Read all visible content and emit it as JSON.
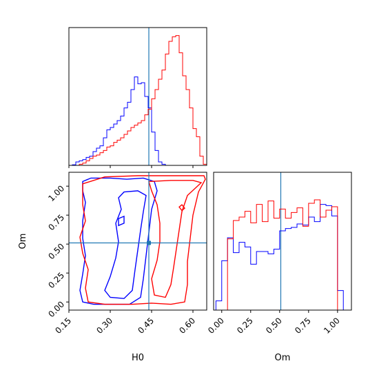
{
  "chart_data": {
    "type": "corner",
    "parameters": [
      "H0",
      "Om"
    ],
    "truth": {
      "H0": 0.44,
      "Om": 0.51,
      "color": "#1f77b4"
    },
    "series": [
      {
        "color": "#0000ff"
      },
      {
        "color": "#ff0000"
      }
    ],
    "axes": {
      "H0": {
        "xlim": [
          0.15,
          0.65
        ],
        "ticks": [
          0.15,
          0.3,
          0.45,
          0.6
        ],
        "tick_labels": [
          "0.15",
          "0.30",
          "0.45",
          "0.60"
        ]
      },
      "Om": {
        "xlim": [
          -0.07,
          1.12
        ],
        "ticks": [
          0.0,
          0.25,
          0.5,
          0.75,
          1.0
        ],
        "tick_labels": [
          "0.00",
          "0.25",
          "0.50",
          "0.75",
          "1.00"
        ]
      }
    },
    "hist_H0": {
      "bin_edges": [
        0.15,
        0.1625,
        0.175,
        0.1875,
        0.2,
        0.2125,
        0.225,
        0.2375,
        0.25,
        0.2625,
        0.275,
        0.2875,
        0.3,
        0.3125,
        0.325,
        0.3375,
        0.35,
        0.3625,
        0.375,
        0.3875,
        0.4,
        0.4125,
        0.425,
        0.4375,
        0.45,
        0.4625,
        0.475,
        0.4875,
        0.5,
        0.5125,
        0.525,
        0.5375,
        0.55,
        0.5625,
        0.575,
        0.5875,
        0.6,
        0.6125,
        0.625,
        0.6375,
        0.65
      ],
      "blue": [
        0,
        0.5,
        3,
        4,
        5,
        7,
        8,
        12,
        15,
        17,
        24,
        31,
        33,
        36,
        39,
        43,
        50,
        55,
        66,
        77,
        71,
        72,
        60,
        50,
        29,
        13,
        3,
        1,
        0,
        0,
        0,
        0,
        0,
        0,
        0,
        0,
        0,
        0,
        0,
        0
      ],
      "red": [
        0,
        0,
        0,
        1,
        2,
        4,
        6,
        8,
        9,
        11,
        13,
        16,
        17,
        20,
        22,
        24,
        27,
        30,
        33,
        35,
        37,
        39,
        44,
        49,
        58,
        66,
        75,
        83,
        97,
        108,
        112,
        113,
        98,
        78,
        66,
        50,
        32,
        25,
        8,
        1
      ]
    },
    "hist_Om": {
      "bin_edges": [
        -0.05,
        0.0,
        0.05,
        0.1,
        0.15,
        0.2,
        0.25,
        0.3,
        0.35,
        0.4,
        0.45,
        0.5,
        0.55,
        0.6,
        0.65,
        0.7,
        0.75,
        0.8,
        0.85,
        0.9,
        0.95,
        1.0,
        1.05,
        1.1
      ],
      "blue": [
        8,
        43,
        63,
        50,
        59,
        55,
        40,
        51,
        51,
        49,
        53,
        69,
        71,
        72,
        75,
        74,
        81,
        77,
        92,
        91,
        82,
        17,
        0
      ],
      "red": [
        0,
        0,
        62,
        78,
        81,
        86,
        76,
        92,
        77,
        95,
        80,
        88,
        80,
        85,
        89,
        73,
        93,
        96,
        81,
        87,
        90,
        0,
        0
      ]
    },
    "ylim_H0_hist": [
      0,
      120
    ],
    "ylim_Om_hist": [
      0,
      120
    ],
    "scatter_ylim": [
      -0.07,
      1.12
    ],
    "contours_2d": {
      "blue_outer": [
        [
          0.2,
          1.04
        ],
        [
          0.23,
          1.07
        ],
        [
          0.3,
          1.07
        ],
        [
          0.36,
          1.06
        ],
        [
          0.42,
          1.07
        ],
        [
          0.46,
          1.04
        ],
        [
          0.47,
          0.96
        ],
        [
          0.45,
          0.8
        ],
        [
          0.44,
          0.6
        ],
        [
          0.43,
          0.4
        ],
        [
          0.42,
          0.2
        ],
        [
          0.41,
          0.04
        ],
        [
          0.37,
          -0.02
        ],
        [
          0.3,
          -0.02
        ],
        [
          0.24,
          -0.02
        ],
        [
          0.2,
          0.0
        ],
        [
          0.19,
          0.1
        ],
        [
          0.2,
          0.24
        ],
        [
          0.21,
          0.4
        ],
        [
          0.2,
          0.55
        ],
        [
          0.2,
          0.7
        ],
        [
          0.21,
          0.86
        ],
        [
          0.2,
          0.96
        ]
      ],
      "blue_inner": [
        [
          0.35,
          0.95
        ],
        [
          0.4,
          0.96
        ],
        [
          0.43,
          0.92
        ],
        [
          0.42,
          0.78
        ],
        [
          0.41,
          0.62
        ],
        [
          0.4,
          0.45
        ],
        [
          0.39,
          0.28
        ],
        [
          0.38,
          0.1
        ],
        [
          0.35,
          0.03
        ],
        [
          0.3,
          0.04
        ],
        [
          0.28,
          0.1
        ],
        [
          0.3,
          0.22
        ],
        [
          0.32,
          0.38
        ],
        [
          0.33,
          0.52
        ],
        [
          0.32,
          0.68
        ],
        [
          0.34,
          0.8
        ],
        [
          0.33,
          0.9
        ]
      ],
      "red_outer": [
        [
          0.2,
          1.02
        ],
        [
          0.28,
          1.08
        ],
        [
          0.4,
          1.09
        ],
        [
          0.52,
          1.09
        ],
        [
          0.64,
          1.09
        ],
        [
          0.645,
          1.06
        ],
        [
          0.62,
          0.95
        ],
        [
          0.6,
          0.75
        ],
        [
          0.59,
          0.55
        ],
        [
          0.58,
          0.35
        ],
        [
          0.58,
          0.15
        ],
        [
          0.57,
          0.0
        ],
        [
          0.52,
          -0.02
        ],
        [
          0.45,
          -0.01
        ],
        [
          0.38,
          -0.02
        ],
        [
          0.28,
          -0.02
        ],
        [
          0.22,
          0.0
        ],
        [
          0.21,
          0.12
        ],
        [
          0.22,
          0.28
        ],
        [
          0.2,
          0.42
        ],
        [
          0.19,
          0.56
        ],
        [
          0.21,
          0.7
        ],
        [
          0.2,
          0.84
        ]
      ],
      "red_inner": [
        [
          0.44,
          1.04
        ],
        [
          0.52,
          1.05
        ],
        [
          0.6,
          1.05
        ],
        [
          0.63,
          1.03
        ],
        [
          0.58,
          0.92
        ],
        [
          0.56,
          0.78
        ],
        [
          0.55,
          0.62
        ],
        [
          0.54,
          0.46
        ],
        [
          0.53,
          0.3
        ],
        [
          0.52,
          0.15
        ],
        [
          0.5,
          0.04
        ],
        [
          0.46,
          0.06
        ],
        [
          0.45,
          0.2
        ],
        [
          0.47,
          0.36
        ],
        [
          0.48,
          0.52
        ],
        [
          0.48,
          0.68
        ],
        [
          0.47,
          0.84
        ],
        [
          0.45,
          0.96
        ]
      ],
      "blue_inner_small": [
        [
          0.33,
          0.72
        ],
        [
          0.35,
          0.74
        ],
        [
          0.35,
          0.68
        ],
        [
          0.33,
          0.66
        ]
      ],
      "red_outer_small": [
        [
          0.55,
          0.82
        ],
        [
          0.56,
          0.84
        ],
        [
          0.57,
          0.81
        ],
        [
          0.56,
          0.79
        ]
      ]
    }
  }
}
